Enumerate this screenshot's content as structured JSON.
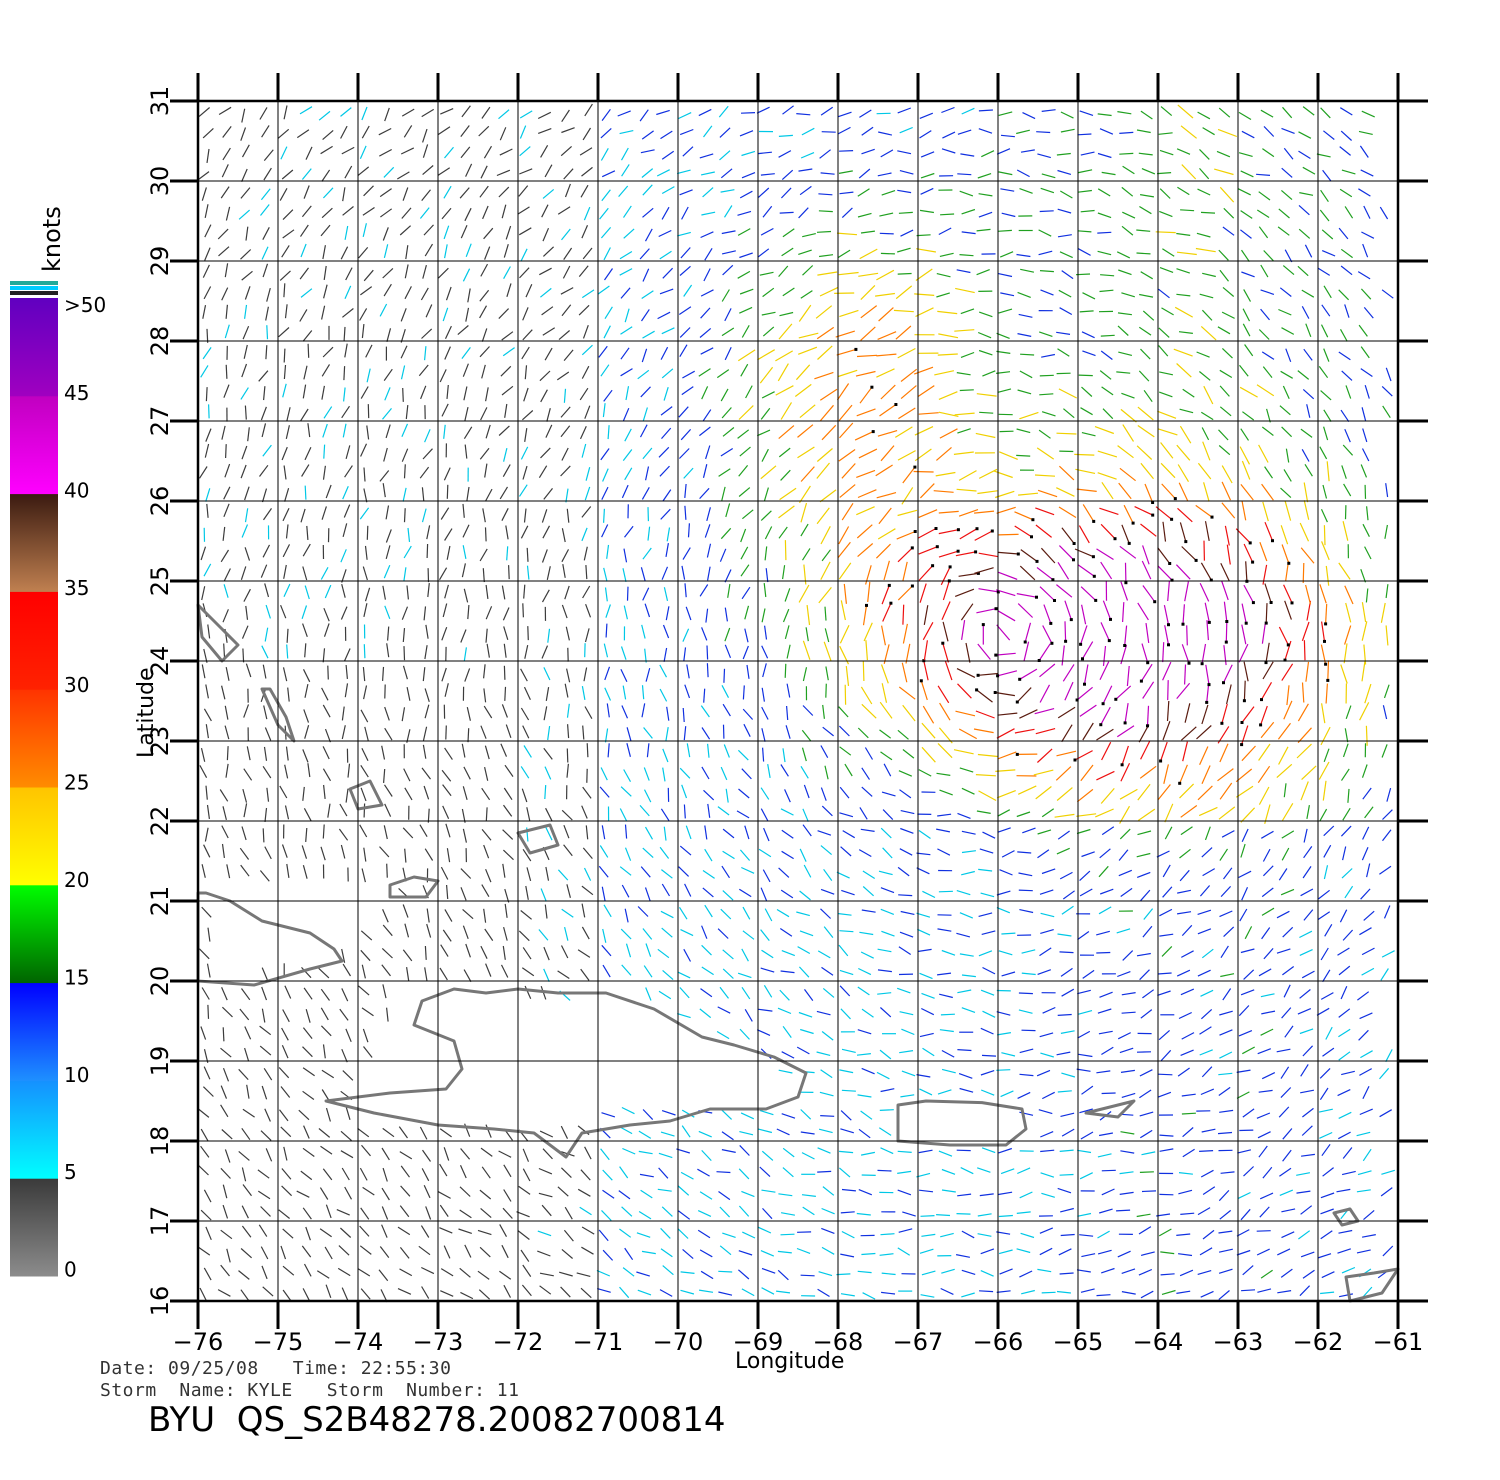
{
  "map": {
    "lon_ticks": [
      "-76",
      "-75",
      "-74",
      "-73",
      "-72",
      "-71",
      "-70",
      "-69",
      "-68",
      "-67",
      "-66",
      "-65",
      "-64",
      "-63",
      "-62",
      "-61"
    ],
    "lat_ticks": [
      "16",
      "17",
      "18",
      "19",
      "20",
      "21",
      "22",
      "23",
      "24",
      "25",
      "26",
      "27",
      "28",
      "29",
      "30",
      "31"
    ],
    "lon_range": [
      -76,
      -61
    ],
    "lat_range": [
      16,
      31
    ],
    "x_label": "Longitude",
    "y_label": "Latitude",
    "gridlines": true,
    "coastline_color": "#777777"
  },
  "legend": {
    "title": "knots",
    "over_label": ">50",
    "labels": [
      "45",
      "40",
      "35",
      "30",
      "25",
      "20",
      "15",
      "10",
      "5",
      "0"
    ],
    "bands": [
      {
        "range": "0-5",
        "colors": [
          "#8c8c8c",
          "#3a3a3a"
        ]
      },
      {
        "range": "5-10",
        "colors": [
          "#00ffff",
          "#1590ff"
        ]
      },
      {
        "range": "10-15",
        "colors": [
          "#1e90ff",
          "#0000ff"
        ]
      },
      {
        "range": "15-20",
        "colors": [
          "#006400",
          "#00ff00"
        ]
      },
      {
        "range": "20-25",
        "colors": [
          "#ffff00",
          "#ffc400"
        ]
      },
      {
        "range": "25-30",
        "colors": [
          "#ff8c00",
          "#ff3300"
        ]
      },
      {
        "range": "30-35",
        "colors": [
          "#ff2200",
          "#ff0000"
        ]
      },
      {
        "range": "35-40",
        "colors": [
          "#c08050",
          "#3a1a10"
        ]
      },
      {
        "range": "40-45",
        "colors": [
          "#ff00ff",
          "#c000c0"
        ]
      },
      {
        "range": "45-50",
        "colors": [
          "#a000c0",
          "#6000c0"
        ]
      }
    ]
  },
  "footer": {
    "date_line": "Date: 09/25/08   Time: 22:55:30",
    "storm_line": "Storm  Name: KYLE   Storm  Number: 11",
    "title": "BYU  QS_S2B48278.20082700814"
  }
}
